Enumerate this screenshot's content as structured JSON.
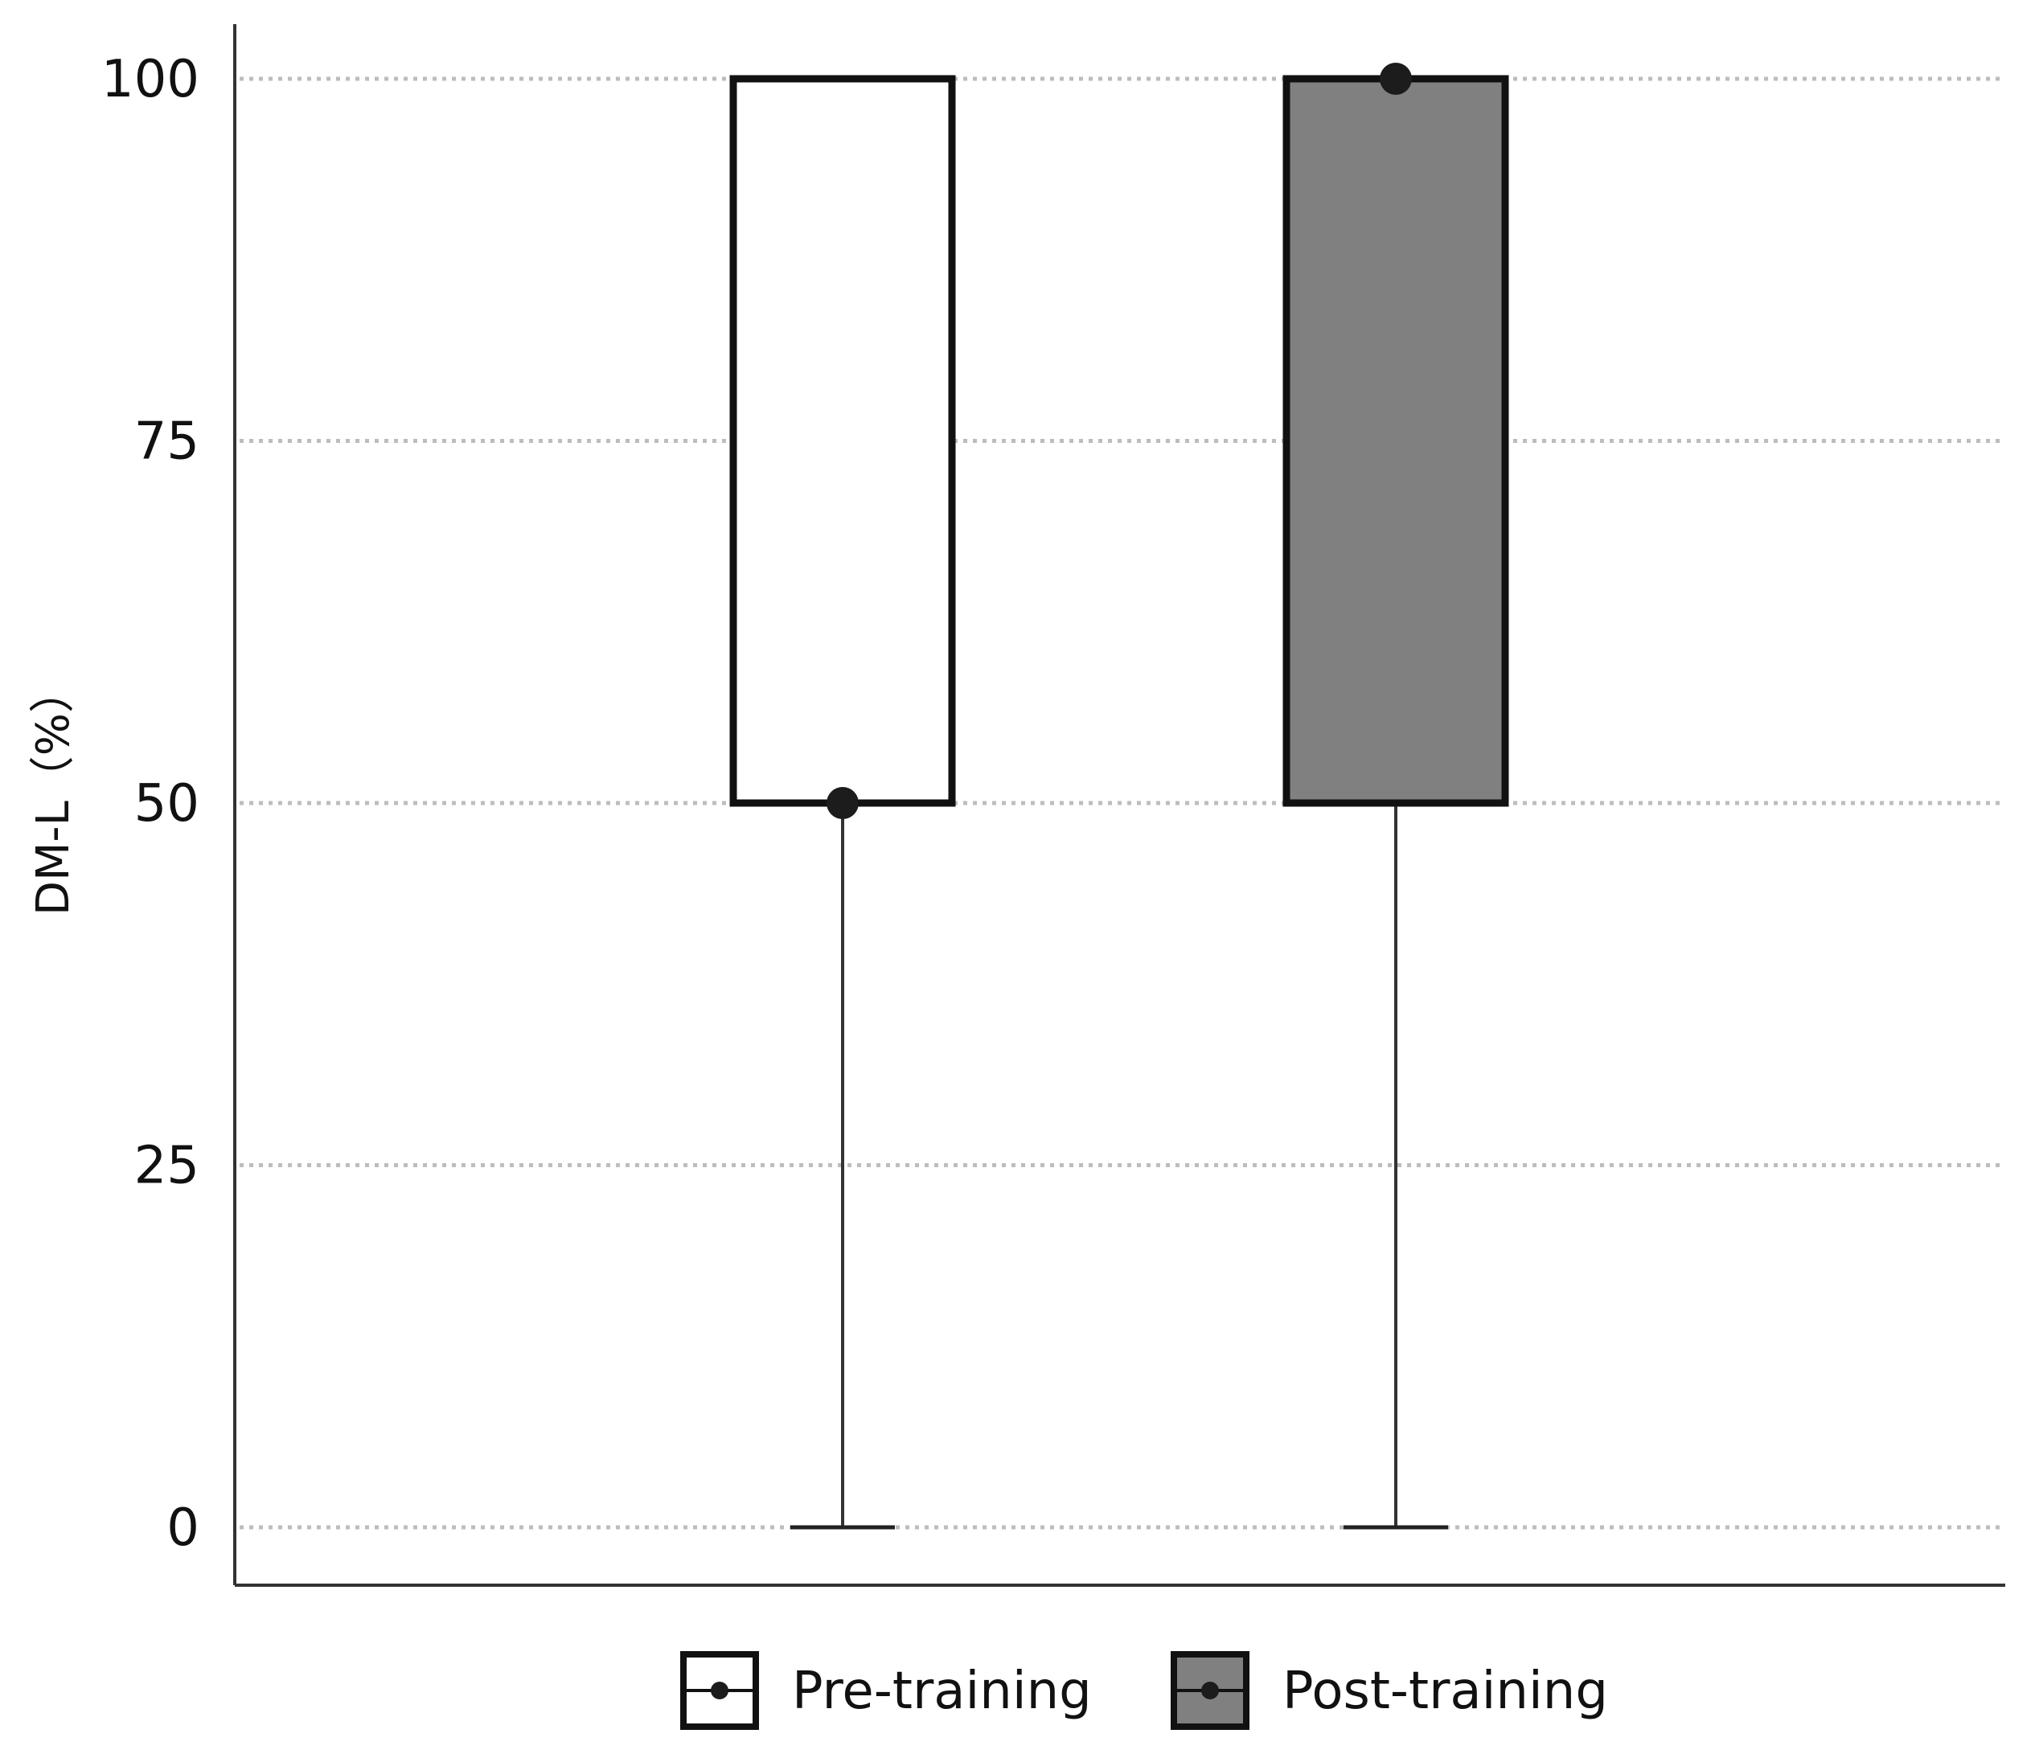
{
  "chart_data": {
    "type": "boxplot",
    "ylabel": "DM-L（%）",
    "ylim": [
      0,
      100
    ],
    "yticks": [
      0,
      25,
      50,
      75,
      100
    ],
    "grid": "horizontal dotted",
    "legend_position": "bottom-center",
    "series": [
      {
        "name": "Pre-training",
        "fill": "#ffffff",
        "min": 0,
        "q1": 50,
        "median": 50,
        "q3": 100,
        "max": 100
      },
      {
        "name": "Post-training",
        "fill": "#808080",
        "min": 0,
        "q1": 50,
        "median": 100,
        "q3": 100,
        "max": 100
      }
    ]
  }
}
